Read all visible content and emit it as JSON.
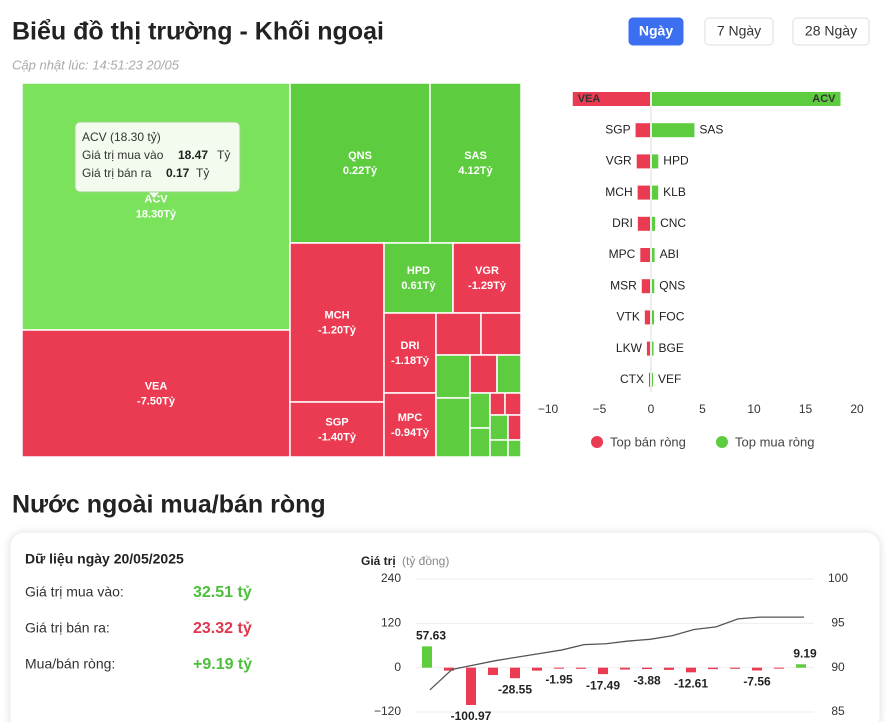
{
  "header": {
    "title": "Biểu đồ thị trường - Khối ngoại",
    "updated": "Cập nhật lúc: 14:51:23 20/05",
    "buttons": [
      {
        "label": "Ngày",
        "active": true
      },
      {
        "label": "7 Ngày",
        "active": false
      },
      {
        "label": "28 Ngày",
        "active": false
      }
    ]
  },
  "section_title": "Nước ngoài mua/bán ròng",
  "summary": {
    "title": "Dữ liệu ngày 20/05/2025",
    "rows": [
      {
        "label": "Giá trị mua vào:",
        "value": "32.51 tỷ",
        "color": "#4cc03a"
      },
      {
        "label": "Giá trị bán ra:",
        "value": "23.32 tỷ",
        "color": "#e2354e"
      },
      {
        "label": "Mua/bán ròng:",
        "value": "+9.19 tỷ",
        "color": "#4cc03a"
      }
    ]
  },
  "chart_data": [
    {
      "type": "treemap",
      "categories": [
        "ACV",
        "VEA",
        "QNS",
        "SAS",
        "MCH",
        "HPD",
        "VGR",
        "DRI",
        "SGP",
        "MPC"
      ],
      "values": [
        18.3,
        -7.5,
        0.22,
        4.12,
        -1.2,
        0.61,
        -1.29,
        -1.18,
        -1.4,
        -0.94
      ],
      "value_labels": [
        "18.30Tỷ",
        "-7.50Tỷ",
        "0.22Tỷ",
        "4.12Tỷ",
        "-1.20Tỷ",
        "0.61Tỷ",
        "-1.29Tỷ",
        "-1.18Tỷ",
        "-1.40Tỷ",
        "-0.94Tỷ"
      ],
      "colors": {
        "positive": "#5ecc3f",
        "negative": "#ea3b52",
        "highlight": "#7be35b"
      },
      "tooltip": {
        "title": "ACV (18.30 tỷ)",
        "rows": [
          {
            "label": "Giá trị mua vào",
            "value": "18.47",
            "unit": "Tỷ"
          },
          {
            "label": "Giá trị bán ra",
            "value": "0.17",
            "unit": "Tỷ"
          }
        ]
      }
    },
    {
      "type": "diverging-bar",
      "xlim": [
        -10,
        20
      ],
      "xticks": [
        {
          "value": -10,
          "label": "−10"
        },
        {
          "value": -5,
          "label": "−5"
        },
        0,
        5,
        10,
        15,
        20
      ],
      "series": [
        {
          "name": "Top bán ròng",
          "color": "#ea3b52",
          "categories": [
            "VEA",
            "SGP",
            "VGR",
            "MCH",
            "DRI",
            "MPC",
            "MSR",
            "VTK",
            "LKW",
            "CTX"
          ],
          "values": [
            -7.5,
            -1.4,
            -1.29,
            -1.2,
            -1.18,
            -0.94,
            -0.8,
            -0.5,
            -0.3,
            -0.1
          ]
        },
        {
          "name": "Top mua ròng",
          "color": "#5ecc3f",
          "categories": [
            "ACV",
            "SAS",
            "HPD",
            "KLB",
            "CNC",
            "ABI",
            "QNS",
            "FOC",
            "BGE",
            "VEF"
          ],
          "values": [
            18.3,
            4.12,
            0.61,
            0.6,
            0.3,
            0.25,
            0.22,
            0.2,
            0.15,
            0.1
          ]
        }
      ]
    },
    {
      "type": "bar-line",
      "ylabel": "Giá trị",
      "ylabel_unit": "(tỷ đồng)",
      "ylim": [
        -120,
        240
      ],
      "yticks": [
        {
          "value": -120,
          "label": "−120"
        },
        0,
        120,
        240
      ],
      "y2lim": [
        85,
        100
      ],
      "y2ticks": [
        85,
        90,
        95,
        100
      ],
      "colors": {
        "positive": "#5ecc3f",
        "negative": "#ea3b52"
      },
      "series": [
        {
          "type": "bar",
          "values": [
            57.63,
            -8,
            -100.97,
            -20,
            -28.55,
            -8,
            -1.95,
            -3,
            -17.49,
            -5,
            -3.88,
            -6,
            -12.61,
            -4,
            -3,
            -7.56,
            -2,
            9.19
          ],
          "value_labels": [
            "57.63",
            null,
            "-100.97",
            null,
            "-28.55",
            null,
            "-1.95",
            null,
            "-17.49",
            null,
            "-3.88",
            null,
            "-12.61",
            null,
            null,
            "-7.56",
            null,
            "9.19"
          ]
        },
        {
          "type": "line",
          "axis": "y2",
          "color": "#555555",
          "values": [
            87.5,
            89.8,
            90.3,
            90.8,
            91.2,
            91.6,
            92.0,
            92.6,
            92.7,
            93.0,
            93.2,
            93.6,
            94.3,
            94.6,
            95.5,
            95.7,
            95.7,
            95.7
          ]
        }
      ]
    }
  ]
}
